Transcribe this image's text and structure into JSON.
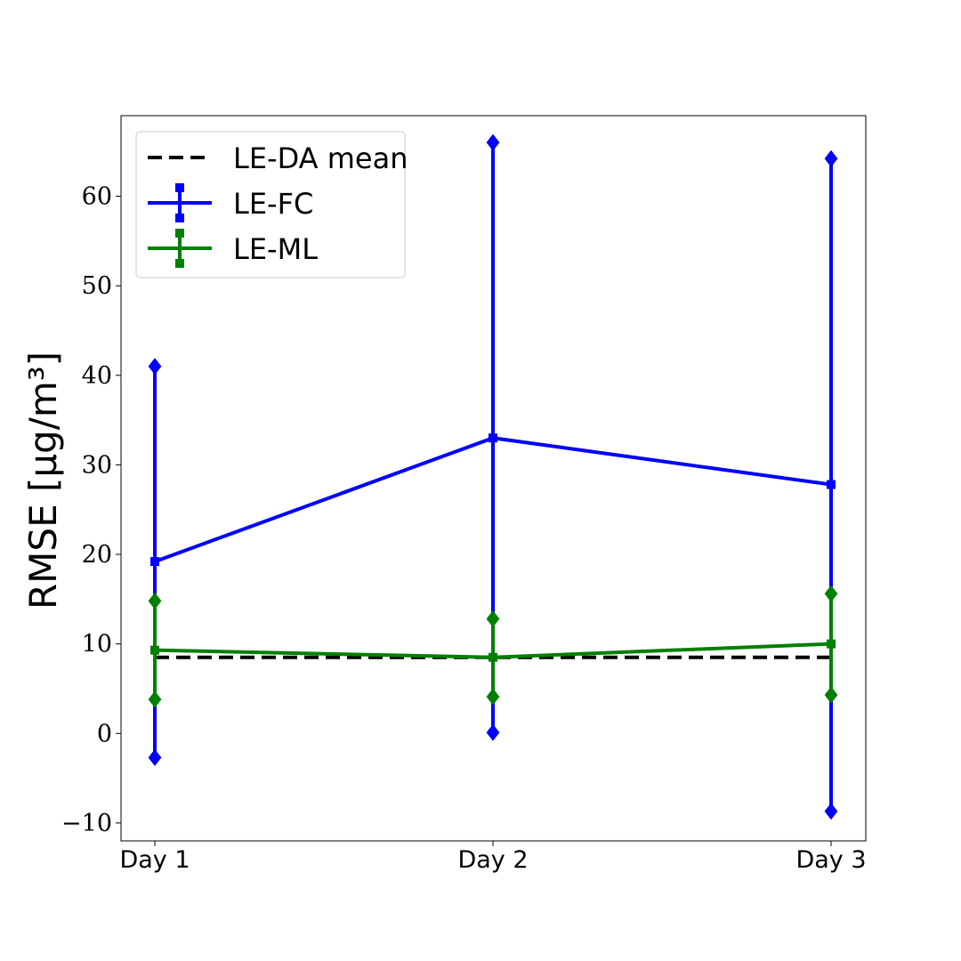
{
  "chart_data": {
    "type": "line",
    "categories": [
      "Day 1",
      "Day 2",
      "Day 3"
    ],
    "ylabel": "RMSE [μg/m³]",
    "ylim": [
      -12,
      69
    ],
    "yticks": [
      -10,
      0,
      10,
      20,
      30,
      40,
      50,
      60
    ],
    "ytick_labels": [
      "−10",
      "0",
      "10",
      "20",
      "30",
      "40",
      "50",
      "60"
    ],
    "grid": false,
    "legend_position": "top-left",
    "reference_lines": [
      {
        "name": "LE-DA mean",
        "value": 8.5,
        "color": "#000000",
        "style": "dashed"
      }
    ],
    "series": [
      {
        "name": "LE-FC",
        "color": "#0000ff",
        "values": [
          19.2,
          33.0,
          27.8
        ],
        "error_low": [
          -2.7,
          0.1,
          -8.7
        ],
        "error_high": [
          41.0,
          66.0,
          64.2
        ]
      },
      {
        "name": "LE-ML",
        "color": "#008000",
        "values": [
          9.3,
          8.5,
          10.0
        ],
        "error_low": [
          3.8,
          4.1,
          4.3
        ],
        "error_high": [
          14.8,
          12.8,
          15.6
        ]
      }
    ]
  }
}
